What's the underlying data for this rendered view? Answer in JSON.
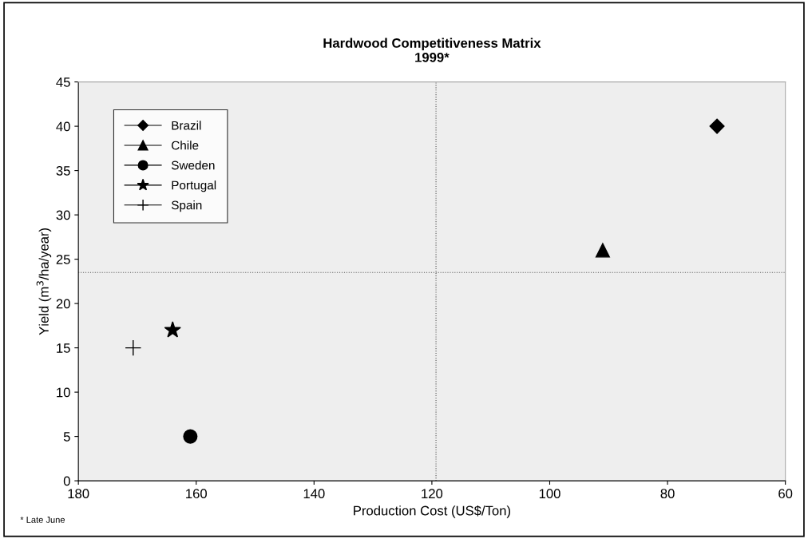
{
  "chart_data": {
    "type": "scatter",
    "title": "Hardwood Competitiveness Matrix\n1999*",
    "xlabel": "Production Cost (US$/Ton)",
    "ylabel": "Yield (m$^{3}$/ha/year)",
    "series": [
      {
        "name": "Brazil",
        "color": "#000000",
        "marker": "diamond",
        "x": [
          71.6
        ],
        "values": [
          40
        ]
      },
      {
        "name": "Chile",
        "color": "#000000",
        "marker": "triangle",
        "x": [
          91
        ],
        "values": [
          26
        ]
      },
      {
        "name": "Sweden",
        "color": "#000000",
        "marker": "circle",
        "x": [
          161
        ],
        "values": [
          5
        ]
      },
      {
        "name": "Portugal",
        "color": "#000000",
        "marker": "star",
        "x": [
          164
        ],
        "values": [
          17
        ]
      },
      {
        "name": "Spain",
        "color": "#000000",
        "marker": "cross",
        "x": [
          170.7
        ],
        "values": [
          15
        ]
      }
    ],
    "xlim": [
      180,
      60
    ],
    "xticks": [
      180,
      160,
      140,
      120,
      100,
      80,
      60
    ],
    "ylim": [
      0,
      45
    ],
    "yticks": [
      0,
      5,
      10,
      15,
      20,
      25,
      30,
      35,
      40,
      45
    ],
    "ref_lines": [
      {
        "axis": "x",
        "value": 119.3,
        "color": "#555555",
        "line_style": "dotted"
      },
      {
        "axis": "y",
        "value": 23.5,
        "color": "#555555",
        "line_style": "dotted"
      }
    ],
    "annotations": [
      "* Late June"
    ],
    "grid": false,
    "legend": "top left"
  }
}
